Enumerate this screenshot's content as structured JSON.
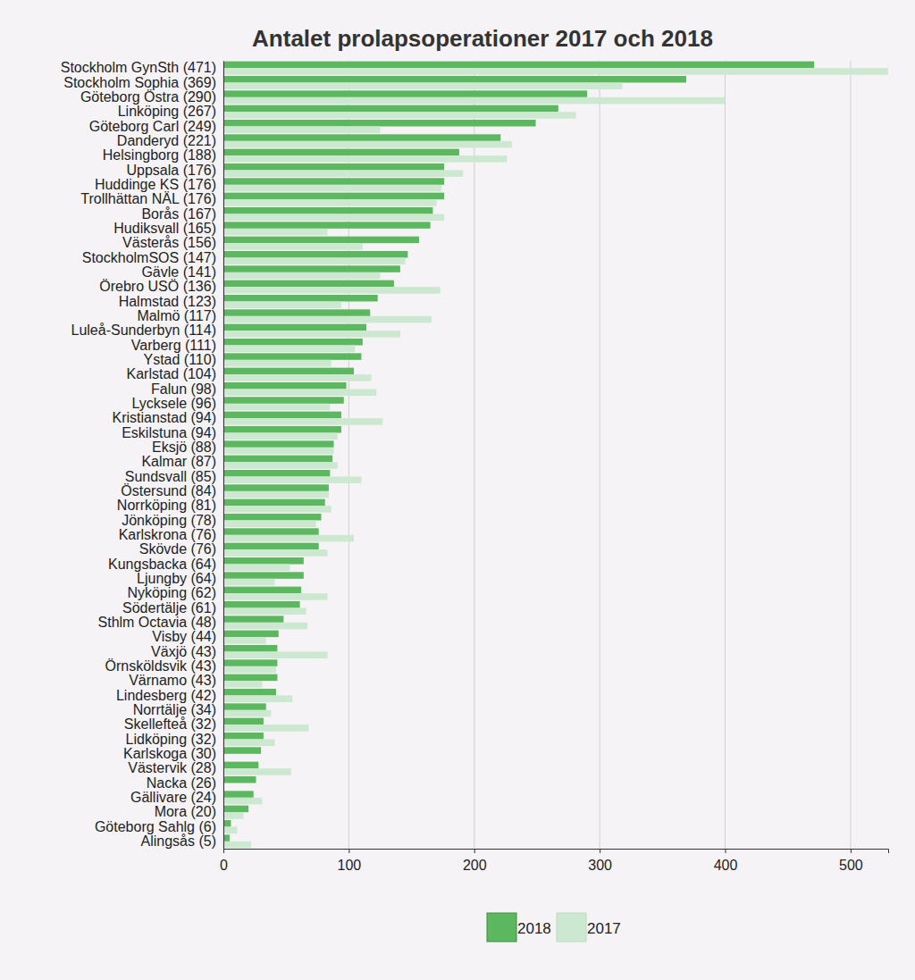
{
  "chart_data": {
    "type": "bar",
    "orientation": "horizontal",
    "title": "Antalet prolapsoperationer 2017 och 2018",
    "categories": [
      "Stockholm GynSth (471)",
      "Stockholm Sophia (369)",
      "Göteborg Östra (290)",
      "Linköping (267)",
      "Göteborg Carl (249)",
      "Danderyd (221)",
      "Helsingborg (188)",
      "Uppsala (176)",
      "Huddinge KS (176)",
      "Trollhättan NÄL (176)",
      "Borås (167)",
      "Hudiksvall (165)",
      "Västerås (156)",
      "StockholmSOS (147)",
      "Gävle (141)",
      "Örebro USÖ (136)",
      "Halmstad (123)",
      "Malmö (117)",
      "Luleå-Sunderbyn (114)",
      "Varberg (111)",
      "Ystad (110)",
      "Karlstad (104)",
      "Falun (98)",
      "Lycksele (96)",
      "Kristianstad (94)",
      "Eskilstuna (94)",
      "Eksjö (88)",
      "Kalmar (87)",
      "Sundsvall (85)",
      "Östersund (84)",
      "Norrköping (81)",
      "Jönköping (78)",
      "Karlskrona (76)",
      "Skövde (76)",
      "Kungsbacka (64)",
      "Ljungby (64)",
      "Nyköping (62)",
      "Södertälje (61)",
      "Sthlm Octavia (48)",
      "Visby (44)",
      "Växjö (43)",
      "Örnsköldsvik (43)",
      "Värnamo (43)",
      "Lindesberg (42)",
      "Norrtälje (34)",
      "Skellefteå (32)",
      "Lidköping (32)",
      "Karlskoga (30)",
      "Västervik (28)",
      "Nacka (26)",
      "Gällivare (24)",
      "Mora (20)",
      "Göteborg Sahlg (6)",
      "Alingsås (5)"
    ],
    "series": [
      {
        "name": "2018",
        "color": "#5cb85f",
        "values": [
          471,
          369,
          290,
          267,
          249,
          221,
          188,
          176,
          176,
          176,
          167,
          165,
          156,
          147,
          141,
          136,
          123,
          117,
          114,
          111,
          110,
          104,
          98,
          96,
          94,
          94,
          88,
          87,
          85,
          84,
          81,
          78,
          76,
          76,
          64,
          64,
          62,
          61,
          48,
          44,
          43,
          43,
          43,
          42,
          34,
          32,
          32,
          30,
          28,
          26,
          24,
          20,
          6,
          5
        ]
      },
      {
        "name": "2017",
        "color": "#cde8d0",
        "values": [
          530,
          318,
          400,
          281,
          125,
          230,
          226,
          191,
          174,
          170,
          176,
          83,
          111,
          145,
          125,
          173,
          94,
          166,
          141,
          105,
          86,
          118,
          122,
          85,
          127,
          91,
          88,
          91,
          110,
          84,
          86,
          74,
          104,
          83,
          53,
          41,
          83,
          66,
          67,
          34,
          83,
          42,
          31,
          55,
          38,
          68,
          41,
          0,
          54,
          0,
          31,
          16,
          11,
          22
        ]
      }
    ],
    "xlim": [
      0,
      530
    ],
    "xticks": [
      0,
      100,
      200,
      300,
      400,
      500
    ],
    "grid": true,
    "legend": "bottom"
  }
}
